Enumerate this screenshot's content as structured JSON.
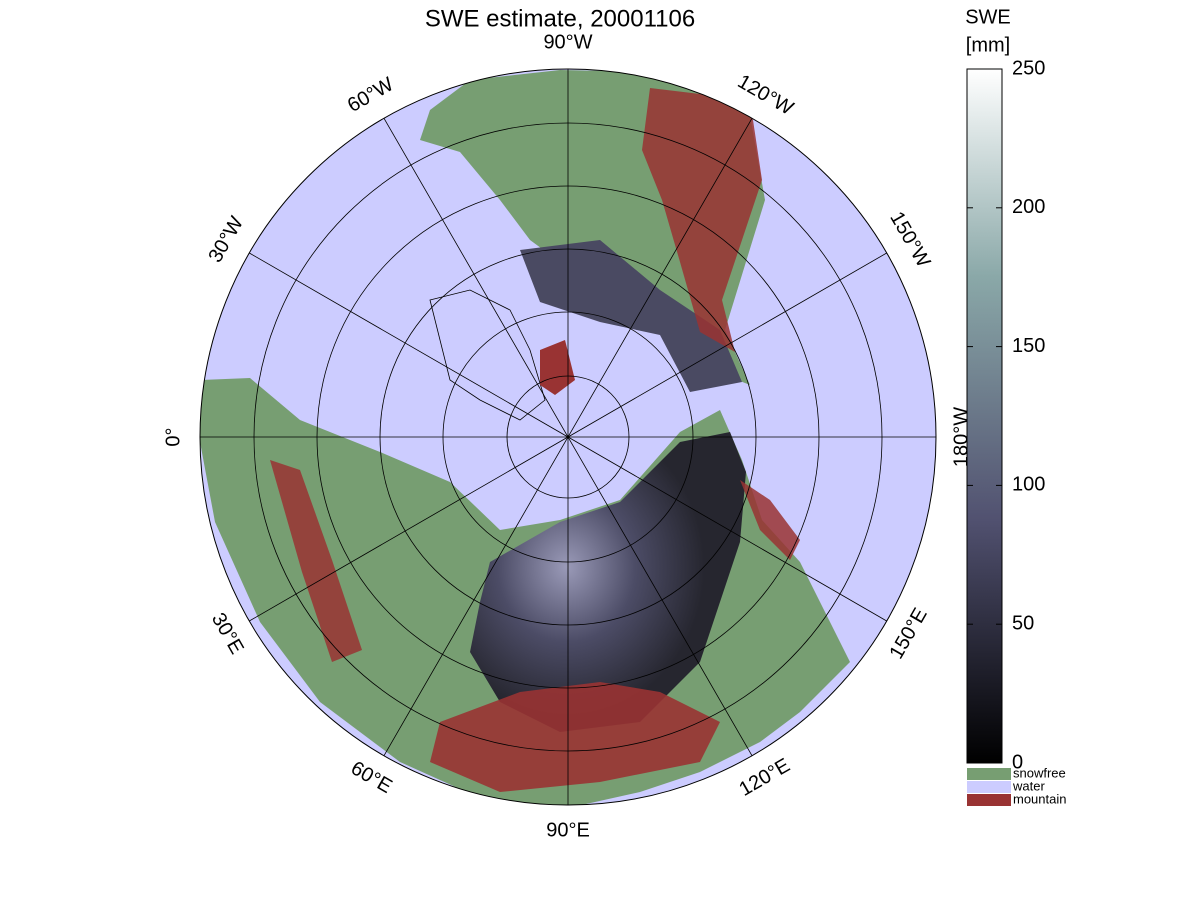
{
  "title": "SWE estimate, 20001106",
  "longitude_labels": [
    "90°W",
    "120°W",
    "150°W",
    "180°W",
    "150°E",
    "120°E",
    "90°E",
    "60°E",
    "30°E",
    "0°",
    "30°W",
    "60°W"
  ],
  "colorbar": {
    "label_line1": "SWE",
    "label_line2": "[mm]",
    "lim": [
      0,
      250
    ],
    "ticks": [
      0,
      50,
      100,
      150,
      200,
      250
    ]
  },
  "legend": [
    {
      "name": "snowfree",
      "color": "#779e72"
    },
    {
      "name": "water",
      "color": "#ccccff"
    },
    {
      "name": "mountain",
      "color": "#993333"
    }
  ]
}
